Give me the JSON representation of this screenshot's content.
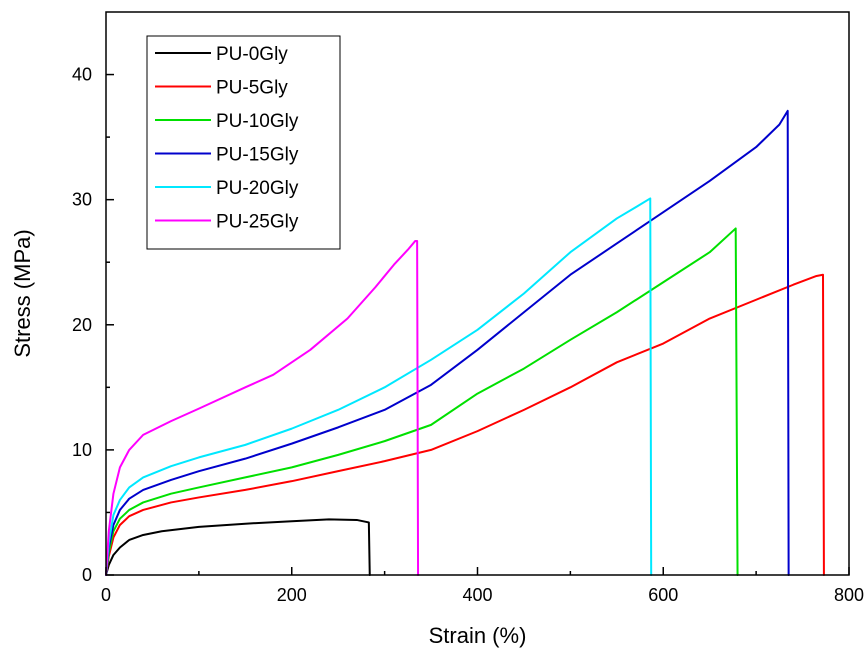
{
  "chart_data": {
    "type": "line",
    "title": "",
    "xlabel": "Strain (%)",
    "ylabel": "Stress (MPa)",
    "xlim": [
      0,
      800
    ],
    "ylim": [
      0,
      45
    ],
    "xticks": [
      0,
      200,
      400,
      600,
      800
    ],
    "yticks": [
      0,
      10,
      20,
      30,
      40
    ],
    "legend_position": "top-left",
    "grid": false,
    "series": [
      {
        "name": "PU-0Gly",
        "color": "#000000",
        "points": [
          [
            0,
            0
          ],
          [
            3,
            0.8
          ],
          [
            8,
            1.6
          ],
          [
            15,
            2.2
          ],
          [
            25,
            2.8
          ],
          [
            40,
            3.2
          ],
          [
            60,
            3.5
          ],
          [
            100,
            3.85
          ],
          [
            150,
            4.1
          ],
          [
            200,
            4.3
          ],
          [
            240,
            4.45
          ],
          [
            270,
            4.4
          ],
          [
            283,
            4.2
          ],
          [
            284,
            0
          ]
        ]
      },
      {
        "name": "PU-5Gly",
        "color": "#ff0000",
        "points": [
          [
            0,
            0
          ],
          [
            3,
            1.5
          ],
          [
            8,
            3.0
          ],
          [
            15,
            4.0
          ],
          [
            25,
            4.7
          ],
          [
            40,
            5.2
          ],
          [
            70,
            5.8
          ],
          [
            100,
            6.2
          ],
          [
            150,
            6.8
          ],
          [
            200,
            7.5
          ],
          [
            250,
            8.3
          ],
          [
            300,
            9.1
          ],
          [
            350,
            10.0
          ],
          [
            400,
            11.5
          ],
          [
            450,
            13.2
          ],
          [
            500,
            15.0
          ],
          [
            550,
            17.0
          ],
          [
            600,
            18.5
          ],
          [
            650,
            20.5
          ],
          [
            700,
            22.0
          ],
          [
            740,
            23.2
          ],
          [
            765,
            23.9
          ],
          [
            772,
            24.0
          ],
          [
            773,
            0
          ]
        ]
      },
      {
        "name": "PU-10Gly",
        "color": "#00e000",
        "points": [
          [
            0,
            0
          ],
          [
            3,
            1.8
          ],
          [
            8,
            3.5
          ],
          [
            15,
            4.5
          ],
          [
            25,
            5.2
          ],
          [
            40,
            5.8
          ],
          [
            70,
            6.5
          ],
          [
            100,
            7.0
          ],
          [
            150,
            7.8
          ],
          [
            200,
            8.6
          ],
          [
            250,
            9.6
          ],
          [
            300,
            10.7
          ],
          [
            350,
            12.0
          ],
          [
            400,
            14.5
          ],
          [
            450,
            16.5
          ],
          [
            500,
            18.8
          ],
          [
            550,
            21.0
          ],
          [
            600,
            23.4
          ],
          [
            650,
            25.8
          ],
          [
            678,
            27.7
          ],
          [
            680,
            0
          ]
        ]
      },
      {
        "name": "PU-15Gly",
        "color": "#0000cc",
        "points": [
          [
            0,
            0
          ],
          [
            3,
            2.2
          ],
          [
            8,
            4.0
          ],
          [
            15,
            5.2
          ],
          [
            25,
            6.1
          ],
          [
            40,
            6.8
          ],
          [
            70,
            7.6
          ],
          [
            100,
            8.3
          ],
          [
            150,
            9.3
          ],
          [
            200,
            10.5
          ],
          [
            250,
            11.8
          ],
          [
            300,
            13.2
          ],
          [
            350,
            15.2
          ],
          [
            400,
            18.0
          ],
          [
            450,
            21.0
          ],
          [
            500,
            24.0
          ],
          [
            550,
            26.5
          ],
          [
            600,
            29.0
          ],
          [
            650,
            31.5
          ],
          [
            700,
            34.2
          ],
          [
            725,
            36.0
          ],
          [
            734,
            37.1
          ],
          [
            735,
            0
          ]
        ]
      },
      {
        "name": "PU-20Gly",
        "color": "#00e8ff",
        "points": [
          [
            0,
            0
          ],
          [
            3,
            2.6
          ],
          [
            8,
            4.8
          ],
          [
            15,
            6.0
          ],
          [
            25,
            7.0
          ],
          [
            40,
            7.8
          ],
          [
            70,
            8.7
          ],
          [
            100,
            9.4
          ],
          [
            150,
            10.4
          ],
          [
            200,
            11.7
          ],
          [
            250,
            13.2
          ],
          [
            300,
            15.0
          ],
          [
            350,
            17.2
          ],
          [
            400,
            19.6
          ],
          [
            450,
            22.5
          ],
          [
            500,
            25.8
          ],
          [
            550,
            28.5
          ],
          [
            575,
            29.6
          ],
          [
            586,
            30.1
          ],
          [
            587,
            0
          ]
        ]
      },
      {
        "name": "PU-25Gly",
        "color": "#ff00ff",
        "points": [
          [
            0,
            0
          ],
          [
            3,
            3.5
          ],
          [
            8,
            6.5
          ],
          [
            15,
            8.6
          ],
          [
            25,
            10.0
          ],
          [
            40,
            11.2
          ],
          [
            70,
            12.3
          ],
          [
            100,
            13.3
          ],
          [
            150,
            15.0
          ],
          [
            180,
            16.0
          ],
          [
            220,
            18.0
          ],
          [
            260,
            20.5
          ],
          [
            290,
            23.0
          ],
          [
            310,
            24.8
          ],
          [
            325,
            26.0
          ],
          [
            333,
            26.7
          ],
          [
            335,
            26.7
          ],
          [
            336,
            0
          ]
        ]
      }
    ]
  }
}
